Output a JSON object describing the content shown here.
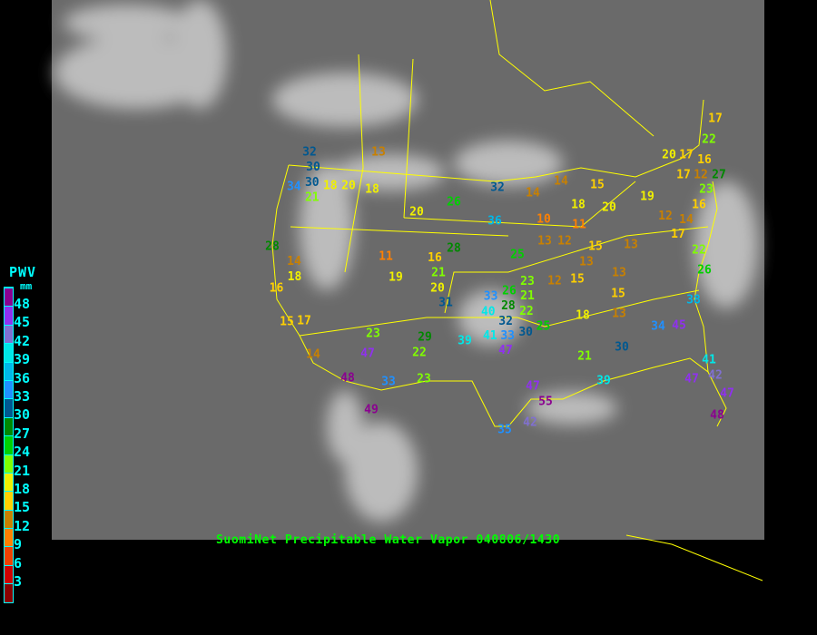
{
  "legend": {
    "title": "PWV",
    "unit": "mm",
    "ticks": [
      "48",
      "45",
      "42",
      "39",
      "36",
      "33",
      "30",
      "27",
      "24",
      "21",
      "18",
      "15",
      "12",
      "9",
      "6",
      "3"
    ],
    "colors": [
      "#8b0000",
      "#d00000",
      "#f04000",
      "#ff8000",
      "#c88000",
      "#ffd000",
      "#f0f000",
      "#80ff00",
      "#00d000",
      "#008800",
      "#005890",
      "#2090ff",
      "#00b8e8",
      "#00e8e8",
      "#8070d0",
      "#9030f0",
      "#8b0090"
    ]
  },
  "caption": "SuomiNet Precipitable Water Vapor 040806/1430",
  "stations": [
    32,
    30,
    30,
    34,
    18,
    20,
    21,
    18,
    13,
    20,
    26,
    32,
    36,
    28,
    28,
    25,
    11,
    14,
    18,
    16,
    21,
    20,
    19,
    16,
    31,
    15,
    17,
    23,
    47,
    29,
    22,
    39,
    14,
    48,
    33,
    23,
    49,
    33,
    40,
    32,
    28,
    41,
    33,
    30,
    26,
    23,
    21,
    22,
    25,
    47,
    14,
    14,
    10,
    13,
    12,
    18,
    15,
    20,
    11,
    15,
    13,
    12,
    15,
    13,
    13,
    15,
    18,
    13,
    21,
    30,
    39,
    34,
    45,
    38,
    19,
    12,
    14,
    17,
    16,
    23,
    22,
    26,
    20,
    17,
    16,
    17,
    12,
    27,
    17,
    22,
    41,
    42,
    47,
    47,
    48,
    47,
    55,
    42,
    35
  ],
  "colors": {
    "background_map": "#6a6a6a",
    "borders": "#ffff00",
    "caption": "#00ff00",
    "legend_text": "#00ffff"
  }
}
